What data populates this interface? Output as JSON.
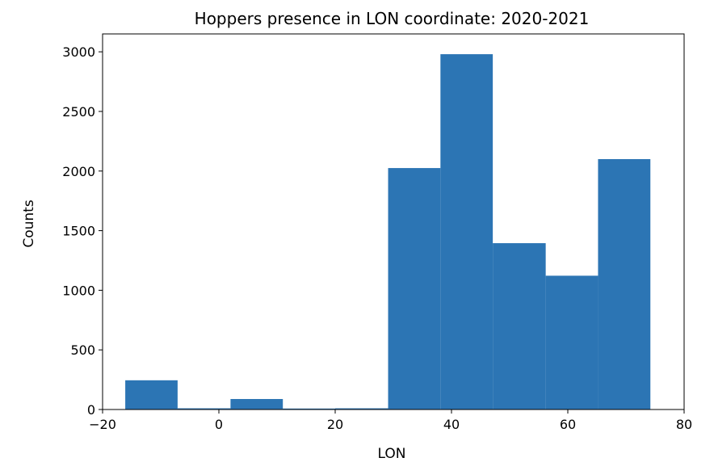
{
  "chart_data": {
    "type": "bar",
    "subtype": "histogram",
    "title": "Hoppers presence in LON coordinate: 2020-2021",
    "xlabel": "LON",
    "ylabel": "Counts",
    "xlim": [
      -20,
      80
    ],
    "ylim": [
      0,
      3150
    ],
    "xticks": [
      -20,
      0,
      20,
      40,
      60,
      80
    ],
    "xtick_labels": [
      "−20",
      "0",
      "20",
      "40",
      "60",
      "80"
    ],
    "yticks": [
      0,
      500,
      1000,
      1500,
      2000,
      2500,
      3000
    ],
    "ytick_labels": [
      "0",
      "500",
      "1000",
      "1500",
      "2000",
      "2500",
      "3000"
    ],
    "bin_edges": [
      -16.1,
      -7.1,
      2.0,
      11.0,
      20.0,
      29.1,
      38.1,
      47.1,
      56.2,
      65.2,
      74.2
    ],
    "values": [
      245,
      10,
      88,
      8,
      10,
      2025,
      2980,
      1395,
      1122,
      2100
    ],
    "grid": false,
    "colors": {
      "bar": "#2c75b4",
      "axis": "#000000"
    }
  }
}
